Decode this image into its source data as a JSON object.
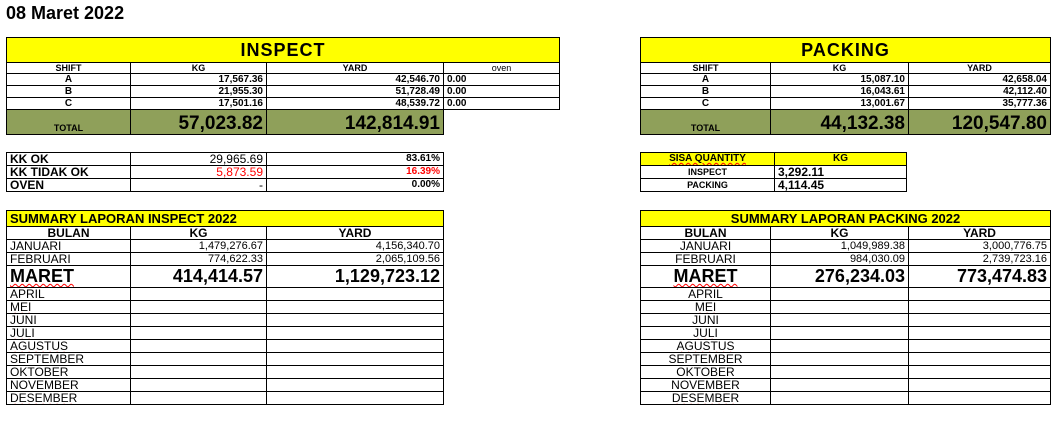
{
  "date": "08 Maret 2022",
  "inspect": {
    "title": "INSPECT",
    "headers": [
      "SHIFT",
      "KG",
      "YARD",
      "oven"
    ],
    "rows": [
      {
        "shift": "A",
        "kg": "17,567.36",
        "yard": "42,546.70",
        "oven": "0.00"
      },
      {
        "shift": "B",
        "kg": "21,955.30",
        "yard": "51,728.49",
        "oven": "0.00"
      },
      {
        "shift": "C",
        "kg": "17,501.16",
        "yard": "48,539.72",
        "oven": "0.00"
      }
    ],
    "total_label": "TOTAL",
    "total_kg": "57,023.82",
    "total_yard": "142,814.91"
  },
  "packing": {
    "title": "PACKING",
    "headers": [
      "SHIFT",
      "KG",
      "YARD"
    ],
    "rows": [
      {
        "shift": "A",
        "kg": "15,087.10",
        "yard": "42,658.04"
      },
      {
        "shift": "B",
        "kg": "16,043.61",
        "yard": "42,112.40"
      },
      {
        "shift": "C",
        "kg": "13,001.67",
        "yard": "35,777.36"
      }
    ],
    "total_label": "TOTAL",
    "total_kg": "44,132.38",
    "total_yard": "120,547.80"
  },
  "kk": {
    "ok_label": "KK OK",
    "ok_kg": "29,965.69",
    "ok_pct": "83.61%",
    "notok_label": "KK TIDAK OK",
    "notok_kg": "5,873.59",
    "notok_pct": "16.39%",
    "oven_label": "OVEN",
    "oven_kg": "-",
    "oven_pct": "0.00%"
  },
  "sisa": {
    "label": "SISA QUANTITY",
    "col": "KG",
    "inspect_label": "INSPECT",
    "inspect_kg": "3,292.11",
    "packing_label": "PACKING",
    "packing_kg": "4,114.45"
  },
  "summary_inspect": {
    "title": "SUMMARY LAPORAN INSPECT 2022",
    "headers": [
      "BULAN",
      "KG",
      "YARD"
    ],
    "jan": {
      "m": "JANUARI",
      "kg": "1,479,276.67",
      "yard": "4,156,340.70"
    },
    "feb": {
      "m": "FEBRUARI",
      "kg": "774,622.33",
      "yard": "2,065,109.56"
    },
    "mar": {
      "m": "MARET",
      "kg": "414,414.57",
      "yard": "1,129,723.12"
    },
    "rest": [
      "APRIL",
      "MEI",
      "JUNI",
      "JULI",
      "AGUSTUS",
      "SEPTEMBER",
      "OKTOBER",
      "NOVEMBER",
      "DESEMBER"
    ]
  },
  "summary_packing": {
    "title": "SUMMARY LAPORAN PACKING 2022",
    "headers": [
      "BULAN",
      "KG",
      "YARD"
    ],
    "jan": {
      "m": "JANUARI",
      "kg": "1,049,989.38",
      "yard": "3,000,776.75"
    },
    "feb": {
      "m": "FEBRUARI",
      "kg": "984,030.09",
      "yard": "2,739,723.16"
    },
    "mar": {
      "m": "MARET",
      "kg": "276,234.03",
      "yard": "773,474.83"
    },
    "rest": [
      "APRIL",
      "MEI",
      "JUNI",
      "JULI",
      "AGUSTUS",
      "SEPTEMBER",
      "OKTOBER",
      "NOVEMBER",
      "DESEMBER"
    ]
  }
}
